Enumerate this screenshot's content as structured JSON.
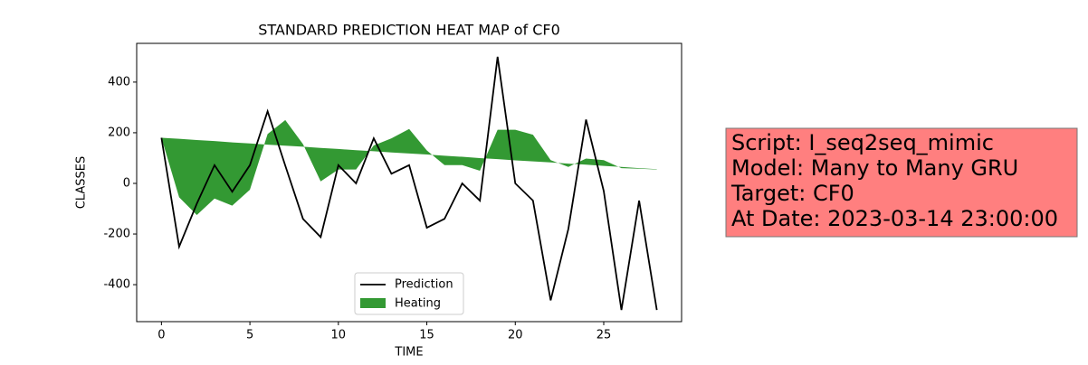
{
  "chart_data": {
    "type": "line",
    "title": "STANDARD PREDICTION HEAT MAP of CF0",
    "xlabel": "TIME",
    "ylabel": "CLASSES",
    "x": [
      0,
      1,
      2,
      3,
      4,
      5,
      6,
      7,
      8,
      9,
      10,
      11,
      12,
      13,
      14,
      15,
      16,
      17,
      18,
      19,
      20,
      21,
      22,
      23,
      24,
      25,
      26,
      27,
      28
    ],
    "xlim": [
      -1.4,
      29.4
    ],
    "xticks": [
      0,
      5,
      10,
      15,
      20,
      25
    ],
    "ylim": [
      -546,
      553
    ],
    "yticks": [
      -400,
      -200,
      0,
      200,
      400
    ],
    "legend": "lower center",
    "series": [
      {
        "name": "Prediction",
        "color": "#000000",
        "values": [
          180,
          -250,
          -80,
          72,
          -33,
          72,
          285,
          70,
          -140,
          -212,
          72,
          0,
          178,
          38,
          72,
          -175,
          -140,
          0,
          -68,
          500,
          0,
          -68,
          -462,
          -180,
          252,
          -30,
          -500,
          -68,
          -500
        ]
      },
      {
        "name": "Heating",
        "color": "#008000",
        "values": [
          180,
          -55,
          -125,
          -60,
          -88,
          -25,
          195,
          250,
          155,
          8,
          55,
          55,
          150,
          178,
          215,
          130,
          72,
          72,
          50,
          212,
          212,
          192,
          92,
          65,
          98,
          92,
          60,
          58,
          55
        ],
        "baseline": [
          180,
          176,
          171,
          167,
          162,
          158,
          153,
          149,
          145,
          140,
          136,
          131,
          127,
          122,
          118,
          114,
          109,
          105,
          100,
          96,
          91,
          87,
          83,
          78,
          74,
          69,
          65,
          60,
          56
        ]
      }
    ],
    "annotation": [
      "Script: I_seq2seq_mimic",
      "Model: Many to Many GRU",
      "Target: CF0",
      "At Date: 2023-03-14 23:00:00"
    ]
  }
}
